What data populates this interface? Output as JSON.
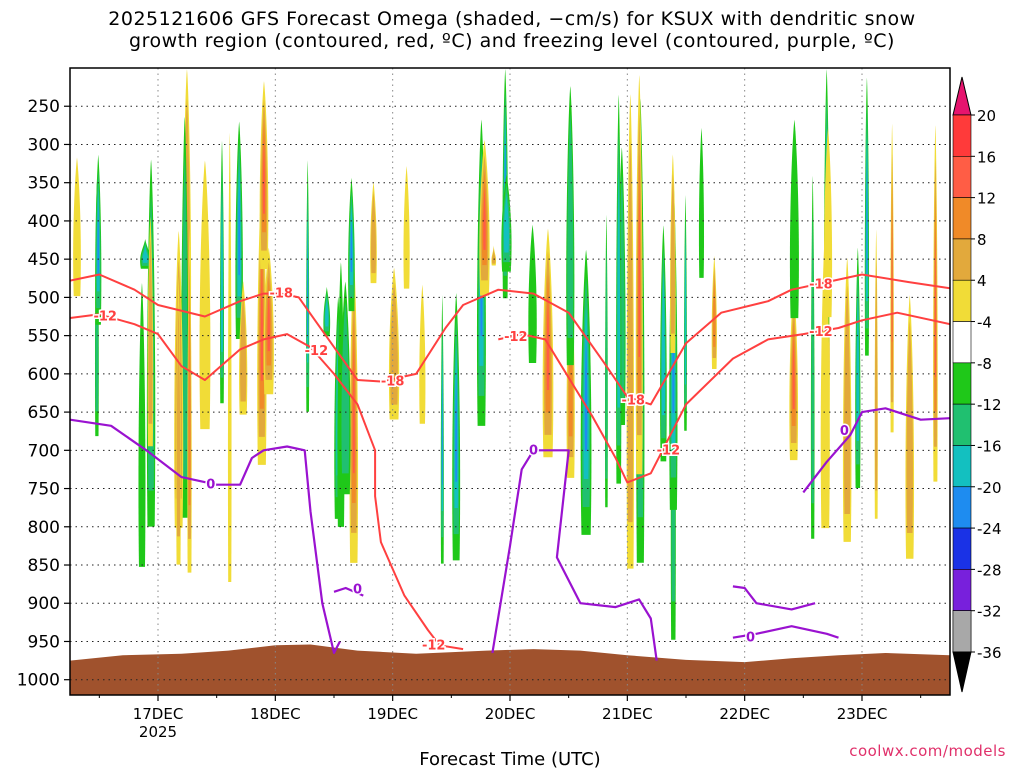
{
  "title": {
    "line1": "2025121606 GFS Forecast Omega (shaded, −cm/s) for KSUX with dendritic snow",
    "line2": "growth region (contoured, red, ºC) and freezing level (contoured, purple, ºC)"
  },
  "credit": "coolwx.com/models",
  "chart_data": {
    "type": "heatmap",
    "xlabel": "Forecast Time (UTC)",
    "x_ticks": [
      "17DEC",
      "18DEC",
      "19DEC",
      "20DEC",
      "21DEC",
      "22DEC",
      "23DEC"
    ],
    "x_year_label": "2025",
    "y_ticks": [
      250,
      300,
      350,
      400,
      450,
      500,
      550,
      600,
      650,
      700,
      750,
      800,
      850,
      900,
      950,
      1000
    ],
    "y_range_hpa": [
      200,
      1020
    ],
    "x_range_days": [
      16.25,
      23.75
    ],
    "colorbar": {
      "labels": [
        20,
        16,
        12,
        8,
        4,
        -4,
        -8,
        -12,
        -16,
        -20,
        -24,
        -28,
        -32,
        -36
      ],
      "colors": [
        "#ff3a3a",
        "#ff5d45",
        "#f08a28",
        "#e2a93c",
        "#f1dc37",
        "#ffffff",
        "#1fc819",
        "#20c070",
        "#13c0c0",
        "#1e8cf0",
        "#1a32e6",
        "#7820dc",
        "#a612d0",
        "#a8a8a8"
      ],
      "max_arrow_color": "#e6146e",
      "min_arrow_color": "#000000"
    },
    "terrain_color": "#a0522d",
    "dgz_contours": {
      "color": "#ff4040",
      "minus12": {
        "label": "-12",
        "points": [
          [
            16.25,
            527
          ],
          [
            16.5,
            522
          ],
          [
            16.8,
            535
          ],
          [
            17.0,
            548
          ],
          [
            17.2,
            590
          ],
          [
            17.4,
            608
          ],
          [
            17.7,
            568
          ],
          [
            17.9,
            555
          ],
          [
            18.1,
            548
          ],
          [
            18.3,
            565
          ],
          [
            18.5,
            600
          ],
          [
            18.7,
            640
          ],
          [
            18.85,
            700
          ],
          [
            18.85,
            760
          ],
          [
            18.9,
            820
          ],
          [
            19.1,
            890
          ],
          [
            19.3,
            935
          ],
          [
            19.4,
            955
          ],
          [
            19.6,
            960
          ]
        ],
        "points_b": [
          [
            19.9,
            555
          ],
          [
            20.1,
            548
          ],
          [
            20.3,
            555
          ],
          [
            20.5,
            605
          ],
          [
            20.7,
            655
          ],
          [
            20.9,
            710
          ],
          [
            21.0,
            742
          ],
          [
            21.2,
            730
          ],
          [
            21.5,
            640
          ],
          [
            21.9,
            580
          ],
          [
            22.2,
            555
          ],
          [
            22.5,
            548
          ],
          [
            22.8,
            540
          ],
          [
            23.0,
            530
          ],
          [
            23.3,
            520
          ],
          [
            23.75,
            535
          ]
        ]
      },
      "minus18": {
        "label": "-18",
        "points": [
          [
            16.25,
            478
          ],
          [
            16.5,
            470
          ],
          [
            16.8,
            490
          ],
          [
            17.0,
            510
          ],
          [
            17.4,
            525
          ],
          [
            17.7,
            505
          ],
          [
            17.9,
            495
          ],
          [
            18.05,
            495
          ],
          [
            18.2,
            500
          ],
          [
            18.5,
            565
          ],
          [
            18.7,
            608
          ],
          [
            18.9,
            610
          ],
          [
            19.2,
            600
          ],
          [
            19.45,
            540
          ],
          [
            19.6,
            510
          ],
          [
            19.9,
            490
          ],
          [
            20.2,
            495
          ],
          [
            20.5,
            520
          ],
          [
            20.8,
            585
          ],
          [
            21.0,
            630
          ],
          [
            21.2,
            640
          ],
          [
            21.5,
            560
          ],
          [
            21.8,
            520
          ],
          [
            22.2,
            505
          ],
          [
            22.4,
            490
          ],
          [
            22.7,
            480
          ],
          [
            23.0,
            470
          ],
          [
            23.4,
            480
          ],
          [
            23.75,
            488
          ]
        ]
      }
    },
    "freezing_contour": {
      "color": "#9a12d0",
      "label": "0",
      "segments": [
        [
          [
            16.25,
            660
          ],
          [
            16.6,
            668
          ],
          [
            16.9,
            700
          ],
          [
            17.2,
            735
          ],
          [
            17.5,
            745
          ],
          [
            17.7,
            745
          ],
          [
            17.8,
            710
          ],
          [
            17.9,
            700
          ],
          [
            18.1,
            695
          ],
          [
            18.25,
            700
          ],
          [
            18.3,
            780
          ],
          [
            18.4,
            900
          ],
          [
            18.5,
            965
          ],
          [
            18.55,
            950
          ]
        ],
        [
          [
            18.5,
            885
          ],
          [
            18.6,
            880
          ],
          [
            18.75,
            890
          ]
        ],
        [
          [
            19.85,
            965
          ],
          [
            20.0,
            825
          ],
          [
            20.1,
            725
          ],
          [
            20.2,
            700
          ],
          [
            20.5,
            700
          ],
          [
            20.4,
            840
          ],
          [
            20.6,
            900
          ],
          [
            20.9,
            905
          ],
          [
            21.1,
            895
          ],
          [
            21.2,
            920
          ],
          [
            21.25,
            975
          ]
        ],
        [
          [
            21.9,
            878
          ],
          [
            22.0,
            880
          ],
          [
            22.1,
            900
          ],
          [
            22.4,
            908
          ],
          [
            22.6,
            900
          ]
        ],
        [
          [
            21.9,
            945
          ],
          [
            22.1,
            940
          ],
          [
            22.4,
            930
          ],
          [
            22.7,
            940
          ],
          [
            22.8,
            945
          ]
        ],
        [
          [
            22.5,
            755
          ],
          [
            22.7,
            715
          ],
          [
            22.9,
            680
          ],
          [
            23.0,
            650
          ],
          [
            23.2,
            645
          ],
          [
            23.5,
            660
          ],
          [
            23.75,
            658
          ]
        ]
      ]
    }
  }
}
